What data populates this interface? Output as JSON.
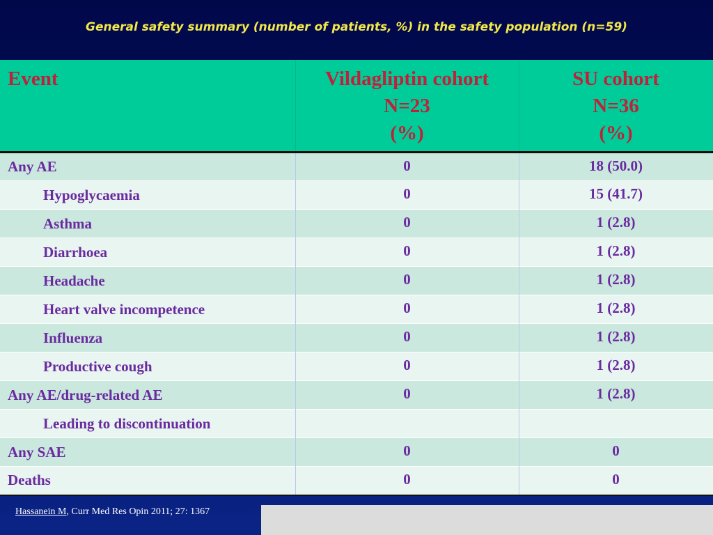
{
  "title": "General safety summary (number of patients, %) in the safety population (n=59)",
  "table": {
    "headers": [
      {
        "lines": [
          "Event"
        ]
      },
      {
        "lines": [
          "Vildagliptin cohort",
          "N=23",
          "(%)"
        ]
      },
      {
        "lines": [
          "SU cohort",
          "N=36",
          "(%)"
        ]
      }
    ],
    "rows": [
      {
        "event": "Any AE",
        "vilda": "0",
        "su": "18 (50.0)"
      },
      {
        "event": "Hypoglycaemia",
        "vilda": "0",
        "su": "15 (41.7)"
      },
      {
        "event": "Asthma",
        "vilda": "0",
        "su": "1 (2.8)"
      },
      {
        "event": "Diarrhoea",
        "vilda": "0",
        "su": "1 (2.8)"
      },
      {
        "event": "Headache",
        "vilda": "0",
        "su": "1 (2.8)"
      },
      {
        "event": "Heart valve incompetence",
        "vilda": "0",
        "su": "1 (2.8)"
      },
      {
        "event": "Influenza",
        "vilda": "0",
        "su": "1 (2.8)"
      },
      {
        "event": "Productive cough",
        "vilda": "0",
        "su": "1 (2.8)"
      },
      {
        "event": "Any AE/drug-related AE",
        "vilda": "0",
        "su": "1 (2.8)"
      },
      {
        "event": "Leading to discontinuation",
        "vilda": "",
        "su": ""
      },
      {
        "event": "Any SAE",
        "vilda": "0",
        "su": "0"
      },
      {
        "event": "Deaths",
        "vilda": "0",
        "su": "0"
      }
    ]
  },
  "citation": {
    "author": "Hassanein M",
    "rest": ", Curr Med Res Opin 2011; 27: 1367"
  },
  "colors": {
    "header_bg": "#00cc99",
    "header_text": "#c0213a",
    "row_text": "#6a2aa0",
    "title_text": "#f3e84a",
    "background": "#020a5a"
  }
}
